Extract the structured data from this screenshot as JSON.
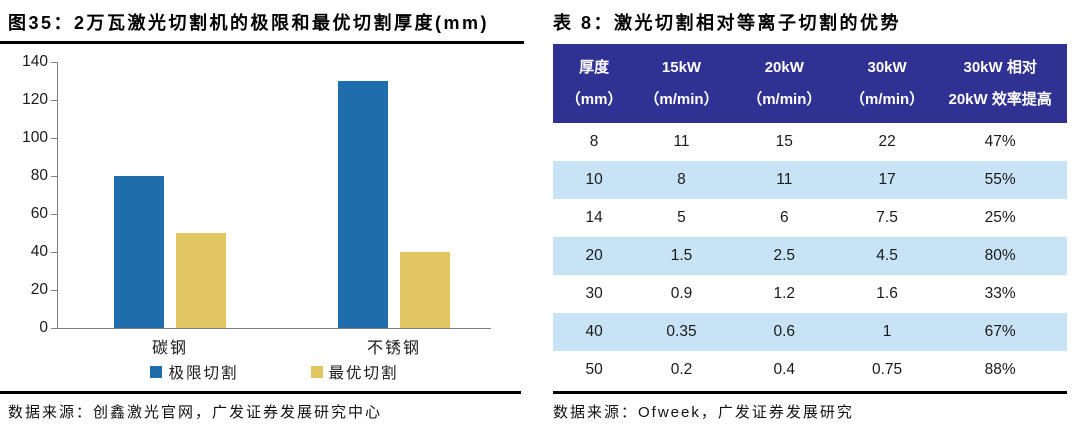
{
  "left_panel": {
    "title": "图35：2万瓦激光切割机的极限和最优切割厚度(mm)",
    "source": "数据来源：创鑫激光官网，广发证券发展研究中心"
  },
  "right_panel": {
    "title": "表 8：激光切割相对等离子切割的优势",
    "source": "数据来源：Ofweek，广发证券发展研究"
  },
  "colors": {
    "bar_blue": "#1F6DAB",
    "bar_yellow": "#E2C661",
    "table_header_bg": "#2F3193",
    "table_header_text": "#FFFFFF",
    "table_row_alt_bg": "#C8E3F5",
    "table_row_bg": "#FFFFFF",
    "rule": "#000000",
    "axis": "#7f7f7f"
  },
  "chart_data": [
    {
      "type": "bar",
      "title": "图35：2万瓦激光切割机的极限和最优切割厚度(mm)",
      "categories": [
        "碳钢",
        "不锈钢"
      ],
      "series": [
        {
          "name": "极限切割",
          "values": [
            80,
            130
          ],
          "color": "#1F6DAB"
        },
        {
          "name": "最优切割",
          "values": [
            50,
            40
          ],
          "color": "#E2C661"
        }
      ],
      "ylim": [
        0,
        140
      ],
      "ytick_step": 20,
      "grid": false,
      "legend_position": "bottom"
    },
    {
      "type": "table",
      "title": "表 8：激光切割相对等离子切割的优势",
      "columns": [
        {
          "line1": "厚度",
          "line2": "（mm）"
        },
        {
          "line1": "15kW",
          "line2": "（m/min）"
        },
        {
          "line1": "20kW",
          "line2": "（m/min）"
        },
        {
          "line1": "30kW",
          "line2": "（m/min）"
        },
        {
          "line1": "30kW 相对",
          "line2": "20kW 效率提高"
        }
      ],
      "col_widths_pct": [
        16,
        18,
        22,
        18,
        26
      ],
      "rows": [
        [
          "8",
          "11",
          "15",
          "22",
          "47%"
        ],
        [
          "10",
          "8",
          "11",
          "17",
          "55%"
        ],
        [
          "14",
          "5",
          "6",
          "7.5",
          "25%"
        ],
        [
          "20",
          "1.5",
          "2.5",
          "4.5",
          "80%"
        ],
        [
          "30",
          "0.9",
          "1.2",
          "1.6",
          "33%"
        ],
        [
          "40",
          "0.35",
          "0.6",
          "1",
          "67%"
        ],
        [
          "50",
          "0.2",
          "0.4",
          "0.75",
          "88%"
        ]
      ]
    }
  ]
}
